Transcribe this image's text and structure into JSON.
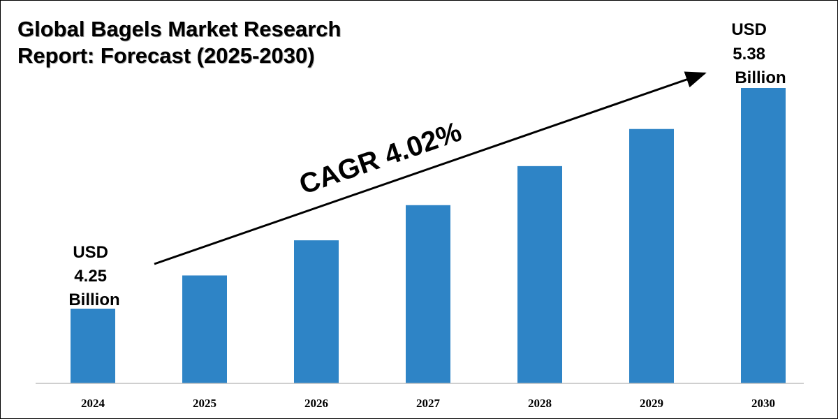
{
  "title": {
    "line1": "Global Bagels Market Research",
    "line2": "Report: Forecast (2025-2030)"
  },
  "colors": {
    "bar": "#2e84c6",
    "axis": "#bfbfbf",
    "arrow": "#000000"
  },
  "annotations": {
    "start": {
      "line1": "USD",
      "line2": "4.25",
      "line3": "Billion"
    },
    "end": {
      "line1": "USD",
      "line2": "5.38",
      "line3": "Billion"
    },
    "cagr": "CAGR 4.02%"
  },
  "chart_data": {
    "type": "bar",
    "title": "Global Bagels Market Research Report: Forecast (2025-2030)",
    "xlabel": "",
    "ylabel": "",
    "categories": [
      "2024",
      "2025",
      "2026",
      "2027",
      "2028",
      "2029",
      "2030"
    ],
    "values": [
      4.25,
      4.42,
      4.6,
      4.78,
      4.98,
      5.17,
      5.38
    ],
    "units": "USD Billion",
    "grid": false,
    "legend": "none"
  }
}
